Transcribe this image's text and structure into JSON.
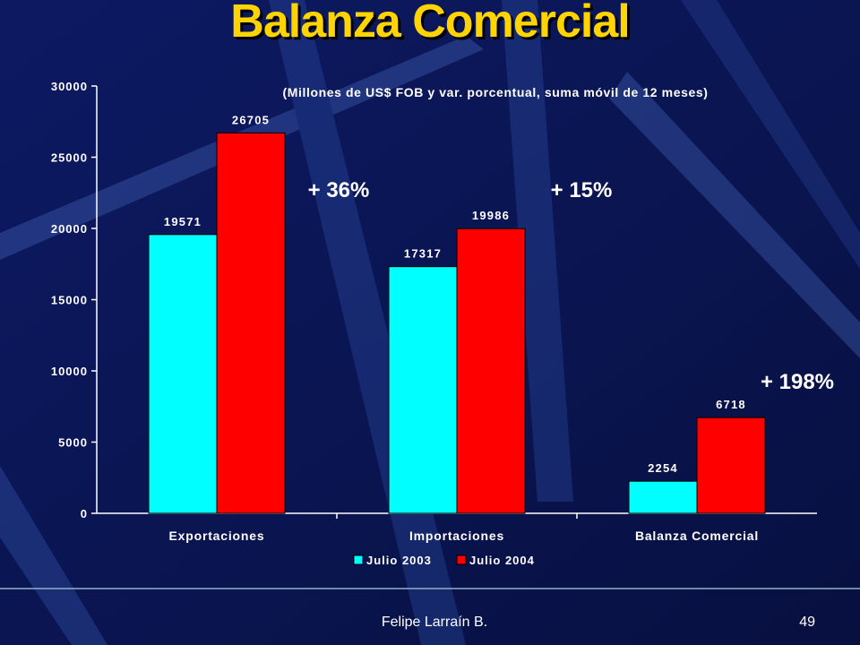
{
  "slide": {
    "title": "Balanza Comercial",
    "footer_author": "Felipe Larraín B.",
    "page_number": "49"
  },
  "colors": {
    "background": "#0a1450",
    "title": "#ffd400",
    "series_2003": "#00ffff",
    "series_2004": "#ff0000",
    "text": "#ffffff"
  },
  "chart_data": {
    "type": "bar",
    "title": "(Millones de US$ FOB y var. porcentual, suma móvil de 12 meses)",
    "categories": [
      "Exportaciones",
      "Importaciones",
      "Balanza Comercial"
    ],
    "series": [
      {
        "name": "Julio 2003",
        "values": [
          19571,
          17317,
          2254
        ],
        "color": "#00ffff"
      },
      {
        "name": "Julio 2004",
        "values": [
          26705,
          19986,
          6718
        ],
        "color": "#ff0000"
      }
    ],
    "yticks": [
      "0",
      "5000",
      "10000",
      "15000",
      "20000",
      "25000",
      "30000"
    ],
    "ylim": [
      0,
      30000
    ],
    "annotations": [
      "+ 36%",
      "+ 15%",
      "+ 198%"
    ],
    "legend_position": "bottom",
    "grid": false
  }
}
